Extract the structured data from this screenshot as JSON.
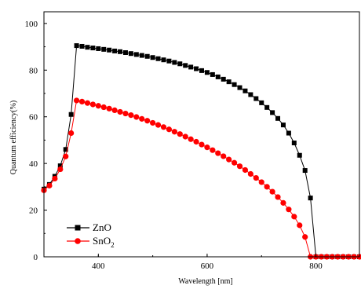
{
  "chart_data": {
    "type": "line",
    "xlabel": "Wavelength [nm]",
    "ylabel": "Quantum efficiency(%)",
    "xlim": [
      300,
      880
    ],
    "ylim": [
      0,
      105
    ],
    "xticks": [
      400,
      600,
      800
    ],
    "yticks": [
      0,
      20,
      40,
      60,
      80,
      100
    ],
    "legend_position": "lower-left",
    "series": [
      {
        "name": "ZnO",
        "color": "#000000",
        "marker": "square",
        "x": [
          300,
          310,
          320,
          330,
          340,
          350,
          360,
          370,
          380,
          390,
          400,
          410,
          420,
          430,
          440,
          450,
          460,
          470,
          480,
          490,
          500,
          510,
          520,
          530,
          540,
          550,
          560,
          570,
          580,
          590,
          600,
          610,
          620,
          630,
          640,
          650,
          660,
          670,
          680,
          690,
          700,
          710,
          720,
          730,
          740,
          750,
          760,
          770,
          780,
          790,
          800,
          810,
          820,
          830,
          840,
          850,
          860,
          870,
          880
        ],
        "values": [
          29,
          31,
          34.5,
          39,
          46,
          61,
          90.5,
          90.2,
          89.8,
          89.5,
          89.2,
          88.9,
          88.6,
          88.2,
          87.9,
          87.5,
          87.1,
          86.7,
          86.3,
          85.9,
          85.4,
          84.9,
          84.4,
          83.9,
          83.3,
          82.7,
          82,
          81.3,
          80.6,
          79.8,
          79,
          78.1,
          77.1,
          76.1,
          75,
          73.8,
          72.5,
          71.1,
          69.5,
          67.8,
          66,
          64,
          61.8,
          59.3,
          56.5,
          53,
          48.8,
          43.5,
          37,
          25.2,
          0,
          0,
          0,
          0,
          0,
          0,
          0,
          0,
          0
        ]
      },
      {
        "name": "SnO2",
        "color": "#ff0000",
        "marker": "circle",
        "x": [
          300,
          310,
          320,
          330,
          340,
          350,
          360,
          370,
          380,
          390,
          400,
          410,
          420,
          430,
          440,
          450,
          460,
          470,
          480,
          490,
          500,
          510,
          520,
          530,
          540,
          550,
          560,
          570,
          580,
          590,
          600,
          610,
          620,
          630,
          640,
          650,
          660,
          670,
          680,
          690,
          700,
          710,
          720,
          730,
          740,
          750,
          760,
          770,
          780,
          790,
          800,
          810,
          820,
          830,
          840,
          850,
          860,
          870,
          880
        ],
        "values": [
          28.5,
          30.5,
          33.5,
          37.5,
          43,
          53,
          67,
          66.5,
          65.9,
          65.3,
          64.7,
          64.1,
          63.5,
          62.8,
          62.1,
          61.4,
          60.7,
          59.9,
          59.1,
          58.3,
          57.4,
          56.5,
          55.6,
          54.6,
          53.6,
          52.6,
          51.5,
          50.4,
          49.3,
          48.1,
          46.9,
          45.7,
          44.4,
          43.1,
          41.7,
          40.3,
          38.8,
          37.2,
          35.5,
          33.8,
          32,
          30,
          27.9,
          25.6,
          23.1,
          20.3,
          17.2,
          13.5,
          8.5,
          0,
          0,
          0,
          0,
          0,
          0,
          0,
          0,
          0,
          0
        ]
      }
    ]
  },
  "legend": {
    "items": [
      {
        "label_main": "ZnO",
        "label_sub": ""
      },
      {
        "label_main": "SnO",
        "label_sub": "2"
      }
    ]
  }
}
